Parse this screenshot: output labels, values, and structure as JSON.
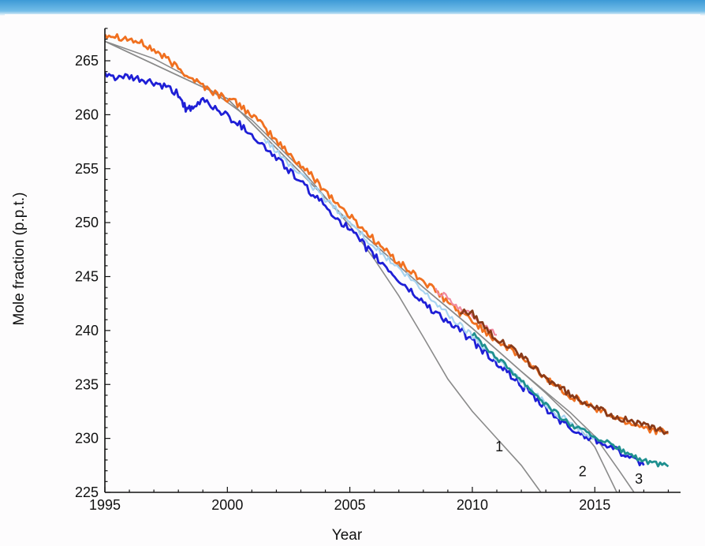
{
  "chart_data": {
    "type": "line",
    "title": "",
    "xlabel": "Year",
    "ylabel": "Mole fraction (p.p.t.)",
    "xlim": [
      1995,
      2018.5
    ],
    "ylim": [
      225,
      268
    ],
    "xticks": [
      1995,
      2000,
      2005,
      2010,
      2015
    ],
    "yticks": [
      225,
      230,
      235,
      240,
      245,
      250,
      255,
      260,
      265
    ],
    "grid": false,
    "legend": "none",
    "series": [
      {
        "color": "#f07020",
        "x": [
          1995,
          1995.5,
          1996,
          1996.5,
          1997,
          1997.5,
          1998,
          1998.5,
          1999,
          1999.5,
          2000,
          2000.5,
          2001,
          2001.5,
          2002,
          2002.5,
          2003,
          2003.5,
          2004,
          2004.5,
          2005,
          2005.5,
          2006,
          2006.5,
          2007,
          2007.5,
          2008,
          2008.5,
          2009,
          2009.5,
          2010,
          2010.5,
          2011,
          2011.5,
          2012,
          2012.5,
          2013,
          2013.5,
          2014,
          2014.5,
          2015,
          2015.5,
          2016,
          2016.5,
          2017,
          2017.5,
          2018
        ],
        "y": [
          267.5,
          267.3,
          267.0,
          266.6,
          266.0,
          265.2,
          264.3,
          263.5,
          262.7,
          262.0,
          261.5,
          260.9,
          260.0,
          258.8,
          257.6,
          256.4,
          255.3,
          254.2,
          253.0,
          251.7,
          250.6,
          249.5,
          248.4,
          247.3,
          246.3,
          245.4,
          244.6,
          243.6,
          242.6,
          241.7,
          240.9,
          240.0,
          239.1,
          238.3,
          237.5,
          236.5,
          235.6,
          234.8,
          234.0,
          233.4,
          232.8,
          232.3,
          231.8,
          231.4,
          231.1,
          230.7,
          230.5
        ],
        "noise": 0.35
      },
      {
        "color": "#1f1fd6",
        "x": [
          1995,
          1995.5,
          1996,
          1996.5,
          1997,
          1997.5,
          1998,
          1998.3,
          1998.6,
          1999,
          1999.5,
          2000,
          2000.5,
          2001,
          2001.5,
          2002,
          2002.5,
          2003,
          2003.5,
          2004,
          2004.5,
          2005,
          2005.5,
          2006,
          2006.5,
          2007,
          2007.5,
          2008,
          2008.5,
          2009,
          2009.5,
          2010,
          2010.5,
          2011,
          2011.5,
          2012,
          2012.5,
          2013,
          2013.5,
          2014,
          2014.5,
          2015,
          2015.5,
          2016,
          2016.5,
          2017
        ],
        "y": [
          263.6,
          263.5,
          263.4,
          263.2,
          262.9,
          262.5,
          261.9,
          260.6,
          260.4,
          261.5,
          260.6,
          259.9,
          259.1,
          258.2,
          257.0,
          256.0,
          254.9,
          253.7,
          252.6,
          251.5,
          250.4,
          249.3,
          248.1,
          246.9,
          245.8,
          244.6,
          243.6,
          242.6,
          241.7,
          240.8,
          240.0,
          239.0,
          238.0,
          237.0,
          236.0,
          234.9,
          233.8,
          232.7,
          231.8,
          230.9,
          230.3,
          229.9,
          229.5,
          228.8,
          228.0,
          227.5
        ],
        "noise": 0.35
      },
      {
        "color": "#a8d4f0",
        "x": [
          2001.5,
          2002,
          2002.5,
          2003,
          2003.5,
          2004,
          2004.5,
          2005,
          2005.5,
          2006,
          2006.5,
          2007,
          2007.5,
          2008,
          2008.5,
          2009,
          2009.5,
          2010,
          2010.5,
          2011,
          2011.5,
          2012,
          2012.5,
          2013,
          2013.5,
          2014,
          2014.5,
          2015
        ],
        "y": [
          257.8,
          256.6,
          255.5,
          254.4,
          253.3,
          252.2,
          251.1,
          250.0,
          248.9,
          247.8,
          246.7,
          245.7,
          244.7,
          243.6,
          242.6,
          241.5,
          240.5,
          239.5,
          238.4,
          237.4,
          236.4,
          235.3,
          234.3,
          233.2,
          232.2,
          231.5,
          230.5,
          230.2
        ],
        "noise": 0.3
      },
      {
        "color": "#f08aa0",
        "x": [
          2008.5,
          2009,
          2009.5,
          2010,
          2010.5,
          2011
        ],
        "y": [
          243.8,
          243.0,
          242.0,
          241.4,
          240.5,
          239.6
        ],
        "noise": 0.25
      },
      {
        "color": "#8a3a18",
        "x": [
          2009.5,
          2010,
          2010.5,
          2011,
          2011.5,
          2012,
          2012.5,
          2013,
          2013.5,
          2014,
          2014.5,
          2015,
          2015.5,
          2016,
          2016.5,
          2017,
          2017.5,
          2018
        ],
        "y": [
          241.8,
          241.6,
          240.4,
          239.2,
          238.5,
          237.6,
          236.6,
          235.5,
          234.9,
          234.0,
          233.5,
          232.9,
          232.3,
          231.9,
          231.6,
          231.2,
          230.8,
          230.6
        ],
        "noise": 0.3
      },
      {
        "color": "#1f9090",
        "x": [
          2010,
          2010.5,
          2011,
          2011.5,
          2012,
          2012.5,
          2013,
          2013.5,
          2014,
          2014.5,
          2015,
          2015.5,
          2016,
          2016.5,
          2017,
          2017.5,
          2018
        ],
        "y": [
          239.7,
          238.6,
          237.5,
          236.5,
          235.4,
          234.3,
          233.2,
          232.2,
          231.3,
          230.7,
          230.2,
          229.6,
          229.0,
          228.4,
          227.9,
          227.6,
          227.4
        ],
        "noise": 0.25
      }
    ],
    "scenarios": [
      {
        "label": "1",
        "color": "#8a8a8a",
        "x": [
          1995,
          1997,
          1999,
          2001,
          2003,
          2005,
          2006,
          2007,
          2008,
          2009,
          2010,
          2011,
          2012,
          2012.8
        ],
        "y": [
          266.8,
          265.2,
          262.8,
          259.5,
          255.0,
          249.7,
          246.6,
          243.2,
          239.4,
          235.5,
          232.5,
          230.0,
          227.5,
          225.0
        ]
      },
      {
        "label": "2",
        "color": "#8a8a8a",
        "x": [
          1995,
          2000,
          2005,
          2008,
          2010,
          2012,
          2013,
          2014,
          2015,
          2015.9
        ],
        "y": [
          266.8,
          261.5,
          250.0,
          244.0,
          240.2,
          236.2,
          234.2,
          232.0,
          229.2,
          225.0
        ]
      },
      {
        "label": "3",
        "color": "#8a8a8a",
        "x": [
          1995,
          2000,
          2005,
          2008,
          2010,
          2012,
          2013,
          2014,
          2015,
          2016,
          2016.6
        ],
        "y": [
          266.8,
          261.5,
          250.0,
          244.0,
          240.2,
          236.2,
          234.3,
          232.4,
          230.2,
          227.0,
          225.0
        ]
      }
    ],
    "annotations": [
      {
        "text": "1",
        "x": 2011.1,
        "y": 228.8
      },
      {
        "text": "2",
        "x": 2014.5,
        "y": 226.5
      },
      {
        "text": "3",
        "x": 2016.8,
        "y": 225.8
      }
    ]
  }
}
